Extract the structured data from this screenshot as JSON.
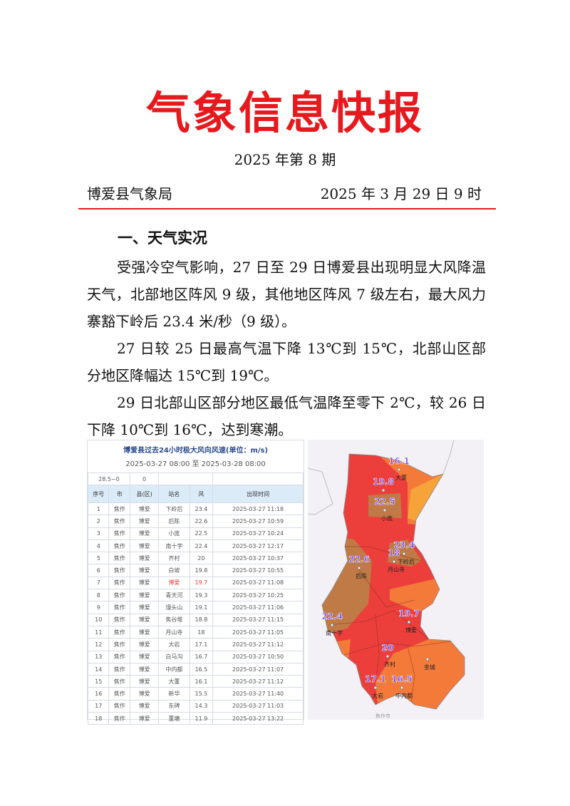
{
  "header": {
    "title": "气象信息快报",
    "issue": "2025 年第 8 期",
    "org": "博爱县气象局",
    "date": "2025 年 3 月 29 日 9 时"
  },
  "section1": {
    "heading": "一、天气实况",
    "paragraphs": [
      "受强冷空气影响，27 日至 29 日博爱县出现明显大风降温天气，北部地区阵风 9 级，其他地区阵风 7 级左右，最大风力寨豁下岭后 23.4 米/秒（9 级）。",
      "27 日较 25 日最高气温下降 13℃到 15℃，北部山区部分地区降幅达 15℃到 19℃。",
      "29 日北部山区部分地区最低气温降至零下 2℃，较 26 日下降 10℃到 16℃，达到寒潮。"
    ]
  },
  "table": {
    "title": "博爱县过去24小时极大风向风速(单位：m/s)",
    "range": "2025-03-27 08:00 至 2025-03-28 08:00",
    "filter": [
      "28.5~0",
      "0",
      "",
      ""
    ],
    "columns": [
      "序号",
      "市",
      "县(区)",
      "站名",
      "风",
      "出现时间"
    ],
    "rows": [
      [
        "1",
        "焦作",
        "博爱",
        "下岭后",
        "23.4",
        "2025-03-27 11:18"
      ],
      [
        "2",
        "焦作",
        "博爱",
        "后陈",
        "22.6",
        "2025-03-27 10:59"
      ],
      [
        "3",
        "焦作",
        "博爱",
        "小庞",
        "22.5",
        "2025-03-27 10:24"
      ],
      [
        "4",
        "焦作",
        "博爱",
        "南十字",
        "22.4",
        "2025-03-27 12:17"
      ],
      [
        "5",
        "焦作",
        "博爱",
        "齐村",
        "20",
        "2025-03-27 10:37"
      ],
      [
        "6",
        "焦作",
        "博爱",
        "白坡",
        "19.8",
        "2025-03-27 10:55"
      ],
      [
        "7",
        "焦作",
        "博爱",
        "博爱",
        "19.7",
        "2025-03-27 11:08"
      ],
      [
        "8",
        "焦作",
        "博爱",
        "青天河",
        "19.3",
        "2025-03-27 10:25"
      ],
      [
        "9",
        "焦作",
        "博爱",
        "馒头山",
        "19.1",
        "2025-03-27 11:06"
      ],
      [
        "10",
        "焦作",
        "博爱",
        "焦谷堆",
        "18.8",
        "2025-03-27 11:15"
      ],
      [
        "11",
        "焦作",
        "博爱",
        "月山寺",
        "18",
        "2025-03-27 11:05"
      ],
      [
        "12",
        "焦作",
        "博爱",
        "大岩",
        "17.1",
        "2025-03-27 11:12"
      ],
      [
        "13",
        "焦作",
        "博爱",
        "白马沟",
        "16.7",
        "2025-03-27 10:50"
      ],
      [
        "14",
        "焦作",
        "博爱",
        "中内都",
        "16.5",
        "2025-03-27 11:07"
      ],
      [
        "15",
        "焦作",
        "博爱",
        "大董",
        "16.1",
        "2025-03-27 11:12"
      ],
      [
        "16",
        "焦作",
        "博爱",
        "新华",
        "15.5",
        "2025-03-27 11:40"
      ],
      [
        "17",
        "焦作",
        "博爱",
        "东碑",
        "14.3",
        "2025-03-27 11:03"
      ],
      [
        "18",
        "焦作",
        "博爱",
        "董塘",
        "11.9",
        "2025-03-27 13:22"
      ]
    ],
    "highlight_row": 7
  },
  "map": {
    "colors": {
      "red": "#ec3f3c",
      "orange": "#f47a3a",
      "brown": "#c07a45",
      "yellow": "#f6a33a",
      "value": "#6a3fe0"
    },
    "stations": [
      {
        "v": "16.1",
        "n": "大董"
      },
      {
        "v": "19.8",
        "n": ""
      },
      {
        "v": "22.5",
        "n": "小庞"
      },
      {
        "v": "23.4",
        "n": "下岭后"
      },
      {
        "v": "18",
        "n": "月山寺"
      },
      {
        "v": "22.6",
        "n": "后陈"
      },
      {
        "v": "22.4",
        "n": "南十字"
      },
      {
        "v": "19.7",
        "n": "博爱"
      },
      {
        "v": "20",
        "n": "齐村"
      },
      {
        "v": "",
        "n": "金城"
      },
      {
        "v": "17.1",
        "n": "大岩"
      },
      {
        "v": "16.5",
        "n": "中内都"
      }
    ],
    "footer": "焦作市"
  }
}
